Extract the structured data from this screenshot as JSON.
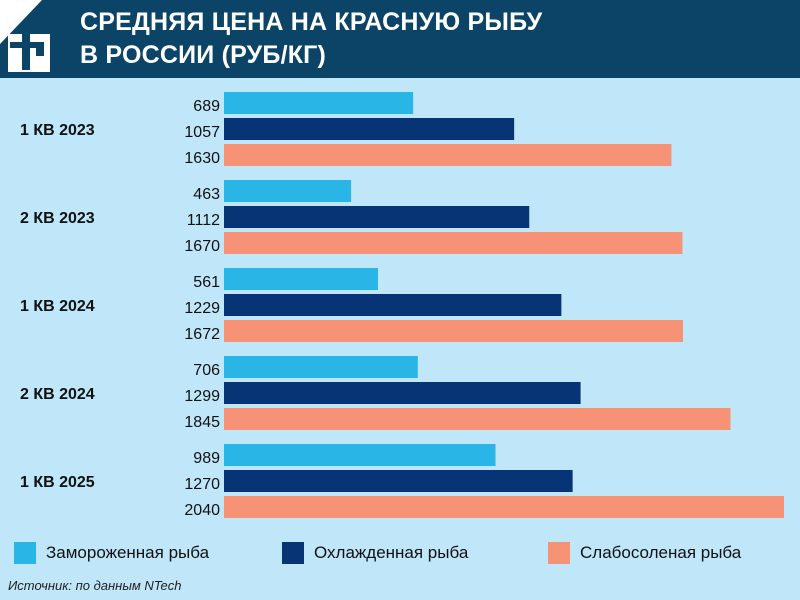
{
  "header": {
    "title_lines": [
      "СРЕДНЯЯ ЦЕНА НА КРАСНУЮ РЫБУ",
      "В РОССИИ (РУБ/КГ)"
    ]
  },
  "chart_data": {
    "type": "bar",
    "orientation": "horizontal",
    "title": "СРЕДНЯЯ ЦЕНА НА КРАСНУЮ РЫБУ В РОССИИ (РУБ/КГ)",
    "categories": [
      "1 КВ 2023",
      "2 КВ 2023",
      "1 КВ 2024",
      "2 КВ 2024",
      "1 КВ 2025"
    ],
    "series": [
      {
        "name": "Замороженная рыба",
        "color": "#29b6e6",
        "values": [
          689,
          463,
          561,
          706,
          989
        ]
      },
      {
        "name": "Охлажденная рыба",
        "color": "#063474",
        "values": [
          1057,
          1112,
          1229,
          1299,
          1270
        ]
      },
      {
        "name": "Слабосоленая рыба",
        "color": "#f69377",
        "values": [
          1630,
          1670,
          1672,
          1845,
          2040
        ]
      }
    ],
    "xlim": [
      0,
      2040
    ],
    "grid": false,
    "legend": "bottom"
  },
  "source": "Источник: по данным NTech"
}
